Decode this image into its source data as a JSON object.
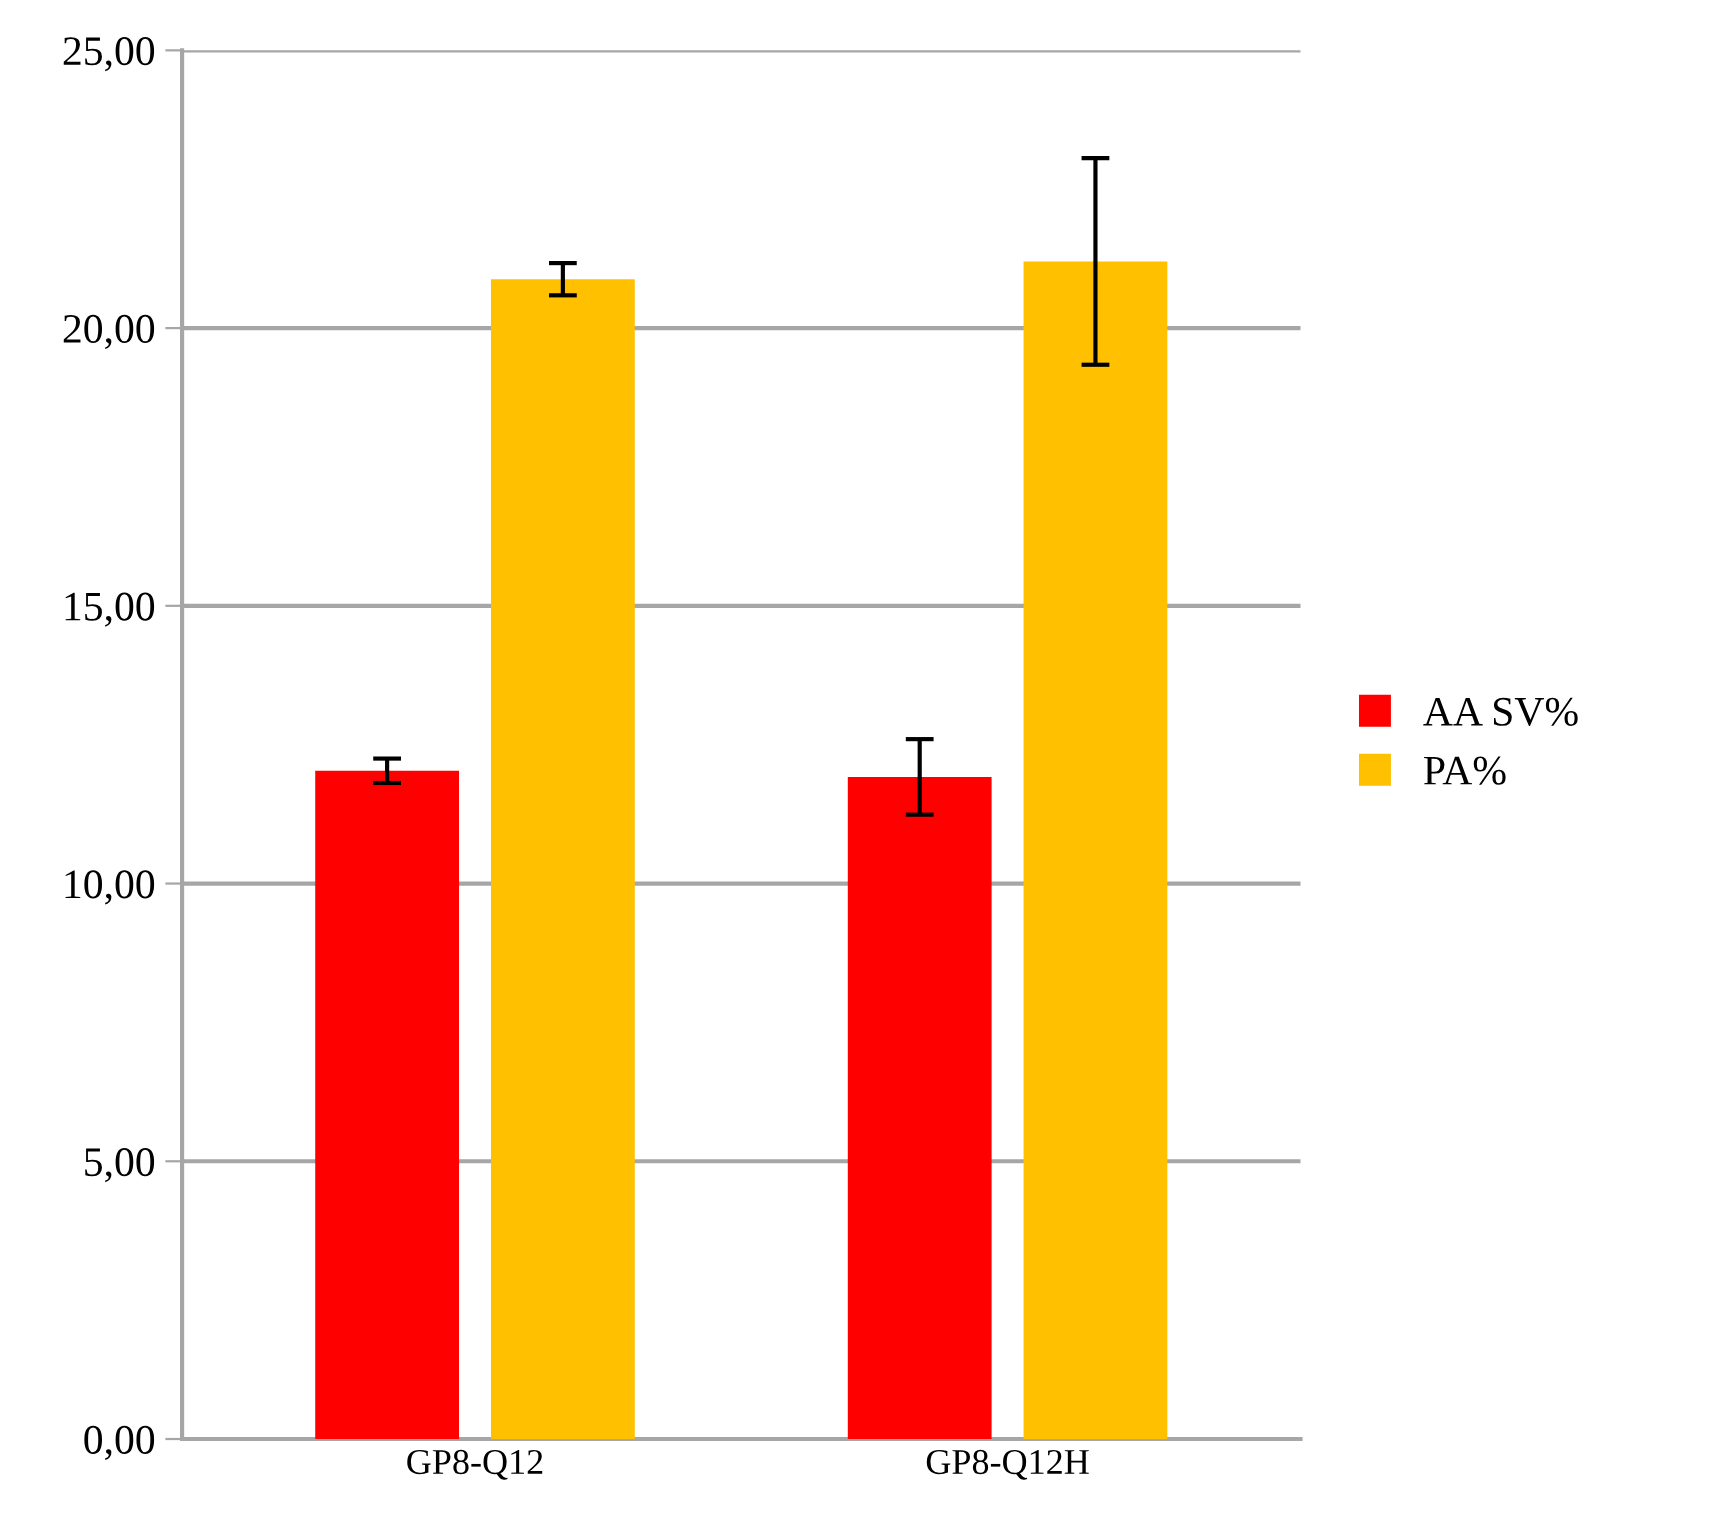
{
  "chart_data": {
    "type": "bar",
    "categories": [
      "GP8-Q12",
      "GP8-Q12H"
    ],
    "series": [
      {
        "name": "AA SV%",
        "color": "#ff0000",
        "values": [
          12.03,
          11.92
        ],
        "errors": [
          0.22,
          0.68
        ]
      },
      {
        "name": "PA%",
        "color": "#ffc000",
        "values": [
          20.88,
          21.2
        ],
        "errors": [
          0.29,
          1.86
        ]
      }
    ],
    "ylim": [
      0,
      25
    ],
    "yticks": [
      {
        "value": 0,
        "label": "0,00"
      },
      {
        "value": 5,
        "label": "5,00"
      },
      {
        "value": 10,
        "label": "10,00"
      },
      {
        "value": 15,
        "label": "15,00"
      },
      {
        "value": 20,
        "label": "20,00"
      },
      {
        "value": 25,
        "label": "25,00"
      }
    ],
    "grid": "y",
    "legend": "right"
  }
}
